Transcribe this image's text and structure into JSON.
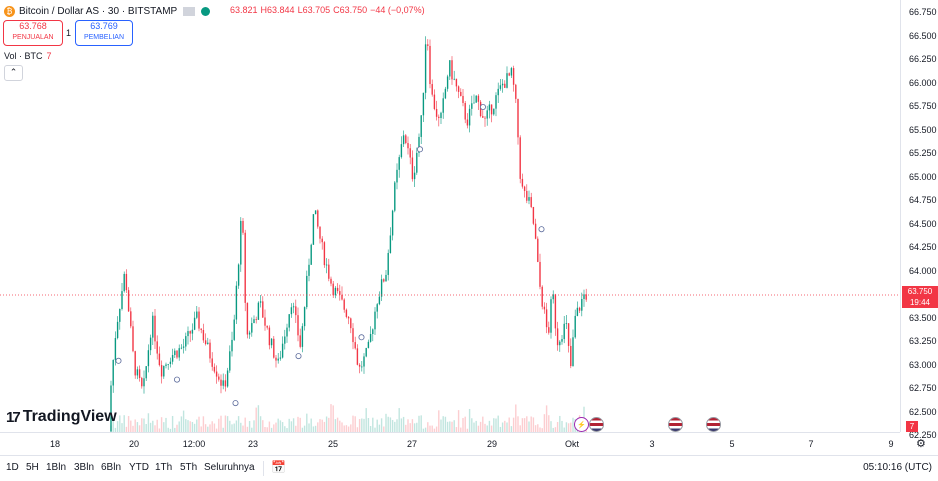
{
  "header": {
    "coin_symbol": "₿",
    "title": "Bitcoin / Dollar AS · 30 · BITSTAMP",
    "ohlc": {
      "open": "63.821",
      "high_label": "H",
      "high": "63.844",
      "low_label": "L",
      "low": "63.705",
      "close_label": "C",
      "close": "63.750",
      "change": "−44 (−0,07%)"
    }
  },
  "trade": {
    "sell_price": "63.768",
    "sell_label": "PENJUALAN",
    "spread": "1",
    "buy_price": "63.769",
    "buy_label": "PEMBELIAN"
  },
  "volume": {
    "label": "Vol · BTC",
    "value": "7",
    "collapse_icon": "chevron-up-icon"
  },
  "logo": {
    "mark": "17",
    "text": "TradingView"
  },
  "price_axis": {
    "ticks": [
      "66.750",
      "66.500",
      "66.250",
      "66.000",
      "65.750",
      "65.500",
      "65.250",
      "65.000",
      "64.750",
      "64.500",
      "64.250",
      "64.000",
      "63.750",
      "63.500",
      "63.250",
      "63.000",
      "62.750",
      "62.500",
      "62.250"
    ],
    "current_price": "63.750",
    "countdown": "19:44",
    "volume_value": "7"
  },
  "time_axis": {
    "ticks": [
      "18",
      "20",
      "12:00",
      "23",
      "25",
      "27",
      "29",
      "Okt",
      "3",
      "5",
      "7",
      "9"
    ]
  },
  "bottom_bar": {
    "ranges": [
      "1D",
      "5H",
      "1Bln",
      "3Bln",
      "6Bln",
      "YTD",
      "1Th",
      "5Th",
      "Seluruhnya"
    ],
    "clock": "05:10:16 (UTC)"
  },
  "colors": {
    "up": "#089981",
    "down": "#f23645",
    "accent": "#2962ff"
  },
  "chart_data": {
    "type": "candlestick",
    "title": "Bitcoin / Dollar AS · 30 · BITSTAMP",
    "ylim": [
      62200,
      66800
    ],
    "x_ticks": [
      "18",
      "20",
      "12:00",
      "23",
      "25",
      "27",
      "29",
      "Okt",
      "3",
      "5",
      "7",
      "9"
    ],
    "grid": false,
    "path": [
      [
        0.13,
        62300
      ],
      [
        0.14,
        63400
      ],
      [
        0.15,
        64000
      ],
      [
        0.16,
        63000
      ],
      [
        0.17,
        62700
      ],
      [
        0.18,
        63500
      ],
      [
        0.19,
        62950
      ],
      [
        0.2,
        63100
      ],
      [
        0.215,
        63200
      ],
      [
        0.23,
        63500
      ],
      [
        0.245,
        63100
      ],
      [
        0.26,
        62750
      ],
      [
        0.27,
        63300
      ],
      [
        0.28,
        64650
      ],
      [
        0.285,
        63300
      ],
      [
        0.3,
        63650
      ],
      [
        0.31,
        63300
      ],
      [
        0.32,
        63000
      ],
      [
        0.335,
        63700
      ],
      [
        0.345,
        63200
      ],
      [
        0.36,
        64650
      ],
      [
        0.37,
        64200
      ],
      [
        0.38,
        63850
      ],
      [
        0.4,
        63500
      ],
      [
        0.41,
        62950
      ],
      [
        0.42,
        63150
      ],
      [
        0.43,
        63700
      ],
      [
        0.44,
        64000
      ],
      [
        0.45,
        64900
      ],
      [
        0.46,
        65500
      ],
      [
        0.47,
        65000
      ],
      [
        0.48,
        65650
      ],
      [
        0.485,
        66650
      ],
      [
        0.49,
        65900
      ],
      [
        0.5,
        65550
      ],
      [
        0.51,
        66200
      ],
      [
        0.52,
        65900
      ],
      [
        0.53,
        65600
      ],
      [
        0.54,
        65850
      ],
      [
        0.55,
        65600
      ],
      [
        0.56,
        65800
      ],
      [
        0.57,
        66000
      ],
      [
        0.58,
        66100
      ],
      [
        0.585,
        65700
      ],
      [
        0.59,
        64900
      ],
      [
        0.6,
        64700
      ],
      [
        0.605,
        64450
      ],
      [
        0.61,
        63900
      ],
      [
        0.62,
        63300
      ],
      [
        0.625,
        63800
      ],
      [
        0.63,
        63250
      ],
      [
        0.64,
        63450
      ],
      [
        0.645,
        62950
      ],
      [
        0.65,
        63500
      ],
      [
        0.66,
        63750
      ]
    ],
    "volume_value": "7"
  }
}
